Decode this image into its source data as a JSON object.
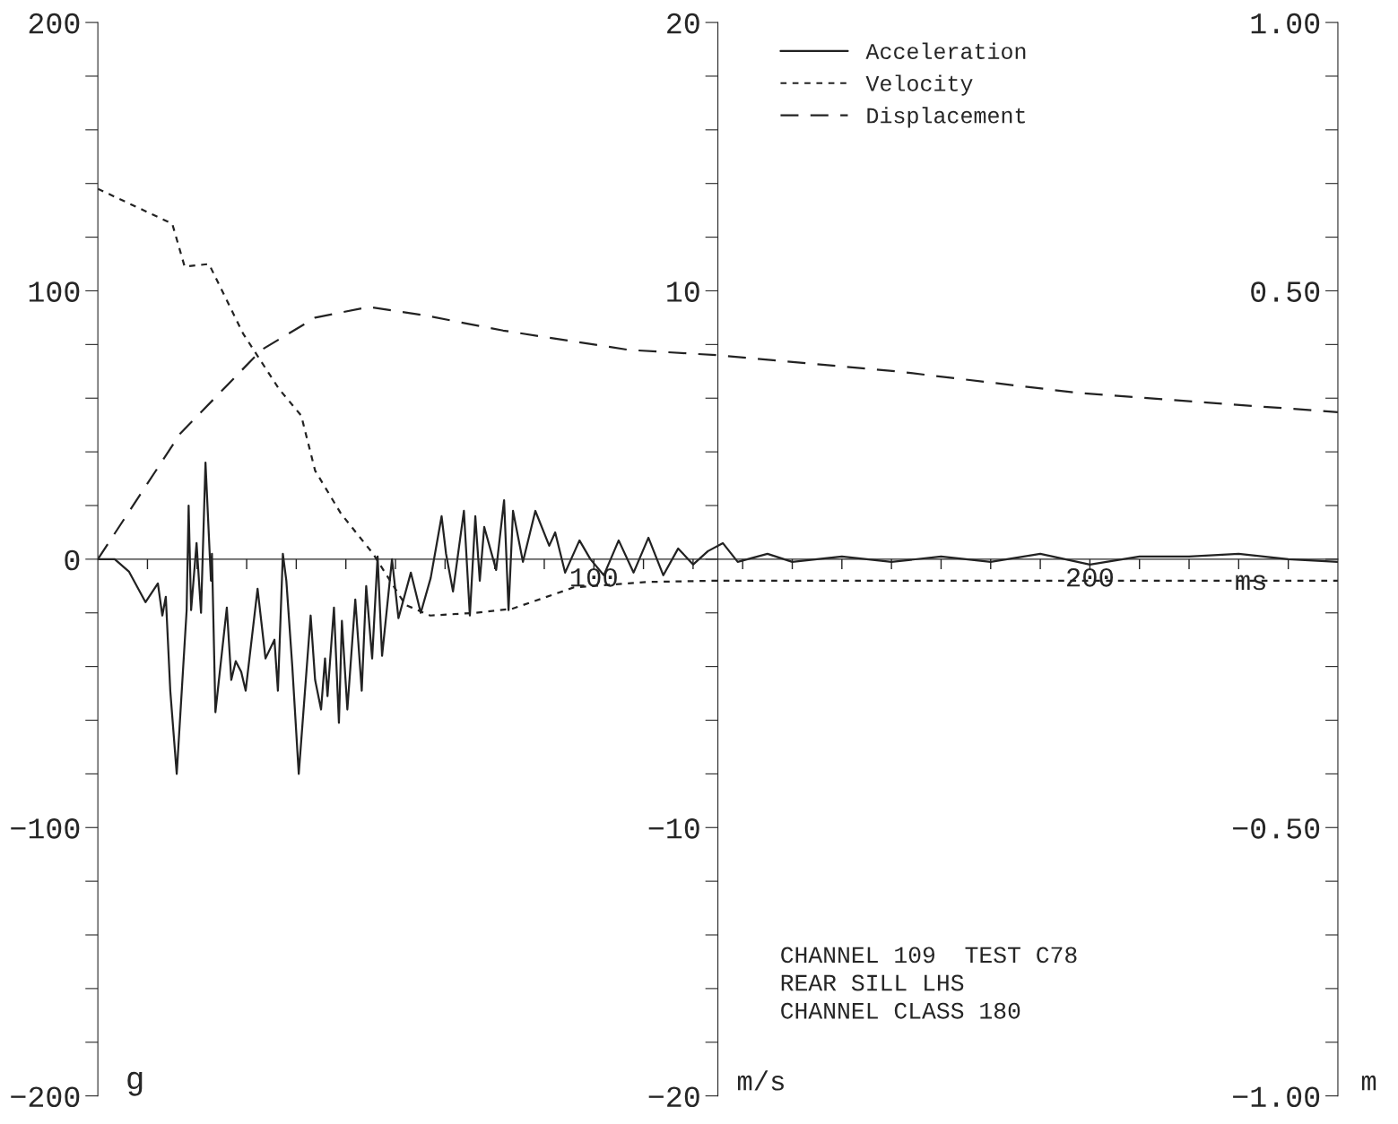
{
  "chart_data": {
    "type": "line",
    "legend": "top",
    "grid": false,
    "xlabel": "ms",
    "ylabel": "g",
    "y2label": "m/s",
    "y3label": "m",
    "xlim": [
      0,
      250
    ],
    "xticks": [
      {
        "value": 10,
        "label": null
      },
      {
        "value": 20,
        "label": null
      },
      {
        "value": 30,
        "label": null
      },
      {
        "value": 40,
        "label": null
      },
      {
        "value": 50,
        "label": null
      },
      {
        "value": 60,
        "label": null
      },
      {
        "value": 70,
        "label": null
      },
      {
        "value": 80,
        "label": null
      },
      {
        "value": 90,
        "label": null
      },
      100,
      {
        "value": 110,
        "label": null
      },
      {
        "value": 120,
        "label": null
      },
      {
        "value": 130,
        "label": null
      },
      {
        "value": 140,
        "label": null
      },
      {
        "value": 150,
        "label": null
      },
      {
        "value": 160,
        "label": null
      },
      {
        "value": 170,
        "label": null
      },
      {
        "value": 180,
        "label": null
      },
      {
        "value": 190,
        "label": null
      },
      200,
      {
        "value": 210,
        "label": null
      },
      {
        "value": 220,
        "label": null
      },
      {
        "value": 230,
        "label": null
      },
      {
        "value": 240,
        "label": null
      }
    ],
    "ylim": [
      -200,
      200
    ],
    "yticks": [
      {
        "value": -200,
        "label": "−200"
      },
      {
        "value": -180,
        "label": null
      },
      {
        "value": -160,
        "label": null
      },
      {
        "value": -140,
        "label": null
      },
      {
        "value": -120,
        "label": null
      },
      {
        "value": -100,
        "label": "−100"
      },
      {
        "value": -80,
        "label": null
      },
      {
        "value": -60,
        "label": null
      },
      {
        "value": -40,
        "label": null
      },
      {
        "value": -20,
        "label": null
      },
      0,
      {
        "value": 20,
        "label": null
      },
      {
        "value": 40,
        "label": null
      },
      {
        "value": 60,
        "label": null
      },
      {
        "value": 80,
        "label": null
      },
      100,
      {
        "value": 120,
        "label": null
      },
      {
        "value": 140,
        "label": null
      },
      {
        "value": 160,
        "label": null
      },
      {
        "value": 180,
        "label": null
      },
      200
    ],
    "y2lim": [
      -20,
      20
    ],
    "y2ticks": [
      {
        "value": -20,
        "label": "−20"
      },
      {
        "value": -18,
        "label": null
      },
      {
        "value": -16,
        "label": null
      },
      {
        "value": -14,
        "label": null
      },
      {
        "value": -12,
        "label": null
      },
      {
        "value": -10,
        "label": "−10"
      },
      {
        "value": -8,
        "label": null
      },
      {
        "value": -6,
        "label": null
      },
      {
        "value": -4,
        "label": null
      },
      {
        "value": -2,
        "label": null
      },
      {
        "value": 0,
        "label": null
      },
      {
        "value": 2,
        "label": null
      },
      {
        "value": 4,
        "label": null
      },
      {
        "value": 6,
        "label": null
      },
      {
        "value": 8,
        "label": null
      },
      10,
      {
        "value": 12,
        "label": null
      },
      {
        "value": 14,
        "label": null
      },
      {
        "value": 16,
        "label": null
      },
      {
        "value": 18,
        "label": null
      },
      20
    ],
    "y3lim": [
      -1,
      1
    ],
    "y3ticks": [
      {
        "value": -1,
        "label": "−1.00"
      },
      {
        "value": -0.9,
        "label": null
      },
      {
        "value": -0.8,
        "label": null
      },
      {
        "value": -0.7,
        "label": null
      },
      {
        "value": -0.6,
        "label": null
      },
      {
        "value": -0.5,
        "label": "−0.50"
      },
      {
        "value": -0.4,
        "label": null
      },
      {
        "value": -0.3,
        "label": null
      },
      {
        "value": -0.2,
        "label": null
      },
      {
        "value": -0.1,
        "label": null
      },
      {
        "value": 0,
        "label": null
      },
      {
        "value": 0.1,
        "label": null
      },
      {
        "value": 0.2,
        "label": null
      },
      {
        "value": 0.3,
        "label": null
      },
      {
        "value": 0.4,
        "label": null
      },
      {
        "value": 0.5,
        "label": "0.50"
      },
      {
        "value": 0.6,
        "label": null
      },
      {
        "value": 0.7,
        "label": null
      },
      {
        "value": 0.8,
        "label": null
      },
      {
        "value": 0.9,
        "label": null
      },
      {
        "value": 1,
        "label": "1.00"
      }
    ],
    "annotations": [
      "CHANNEL 109  TEST C78",
      "REAR SILL LHS",
      "CHANNEL CLASS 180"
    ],
    "series": [
      {
        "name": "Acceleration",
        "color": "#222222",
        "line_style": "solid",
        "x": [
          0,
          3.4,
          6.3,
          9.6,
          12.1,
          13,
          13.7,
          14.6,
          15.9,
          17.9,
          18.3,
          18.8,
          19.9,
          20.8,
          21.7,
          22.8,
          23,
          23.7,
          26,
          26.9,
          27.8,
          28.9,
          29.8,
          32.2,
          33.8,
          35.6,
          36.3,
          37.3,
          38,
          39.2,
          40.5,
          42.9,
          43.8,
          45,
          45.8,
          46.3,
          47.6,
          48.6,
          49.2,
          50.3,
          51.9,
          53.2,
          54.1,
          55.3,
          56.4,
          57.3,
          59.3,
          60.6,
          63.1,
          65.1,
          67.1,
          69.3,
          70.2,
          71.6,
          73.8,
          75,
          76.1,
          77,
          77.9,
          80.3,
          81.9,
          82.8,
          83.7,
          85.7,
          88.2,
          91,
          92.2,
          94.2,
          97.1,
          99.3,
          102,
          105,
          108,
          111,
          114,
          117,
          120,
          123,
          126,
          129,
          135,
          140,
          150,
          160,
          170,
          180,
          190,
          200,
          210,
          220,
          230,
          240,
          250
        ],
        "values": [
          0,
          0,
          -4.7,
          -16,
          -9,
          -21,
          -14,
          -49,
          -80,
          -19,
          20,
          -19,
          6,
          -20,
          36,
          -8,
          2,
          -57,
          -18,
          -45,
          -38,
          -42,
          -49,
          -11,
          -37,
          -30,
          -49,
          2,
          -8,
          -40,
          -80,
          -21,
          -45,
          -56,
          -37,
          -51,
          -18,
          -61,
          -23,
          -56,
          -15,
          -49,
          -10,
          -37,
          1,
          -36,
          0,
          -22,
          -5,
          -20,
          -7,
          16,
          2,
          -12,
          18,
          -21,
          16,
          -8,
          12,
          -4,
          22,
          -19,
          18,
          -1,
          18,
          5,
          10,
          -5,
          7,
          0,
          -6,
          7,
          -5,
          8,
          -6,
          4,
          -2,
          3,
          6,
          -1,
          2,
          -1,
          1,
          -1,
          1,
          -1,
          2,
          -2,
          1,
          1,
          2,
          0,
          -1
        ]
      },
      {
        "name": "Velocity",
        "color": "#222222",
        "line_style": "dotted",
        "axis": "y2",
        "x": [
          0,
          15,
          17.5,
          22.4,
          29.3,
          36.5,
          41,
          43.8,
          49,
          55.5,
          62,
          67,
          76,
          83.5,
          96,
          110.7,
          125,
          250
        ],
        "values": [
          13.8,
          12.5,
          10.9,
          11.0,
          8.4,
          6.35,
          5.35,
          3.3,
          1.7,
          0.2,
          -1.7,
          -2.1,
          -2.0,
          -1.85,
          -1.05,
          -0.85,
          -0.8,
          -0.8
        ]
      },
      {
        "name": "Displacement",
        "color": "#222222",
        "line_style": "dashed",
        "axis": "y3",
        "x": [
          0,
          16.6,
          33,
          43.8,
          54.6,
          65.5,
          81.7,
          107,
          125,
          161,
          197.5,
          233.6,
          250
        ],
        "values": [
          0,
          0.234,
          0.39,
          0.45,
          0.47,
          0.455,
          0.426,
          0.39,
          0.38,
          0.35,
          0.31,
          0.285,
          0.274
        ]
      }
    ]
  }
}
